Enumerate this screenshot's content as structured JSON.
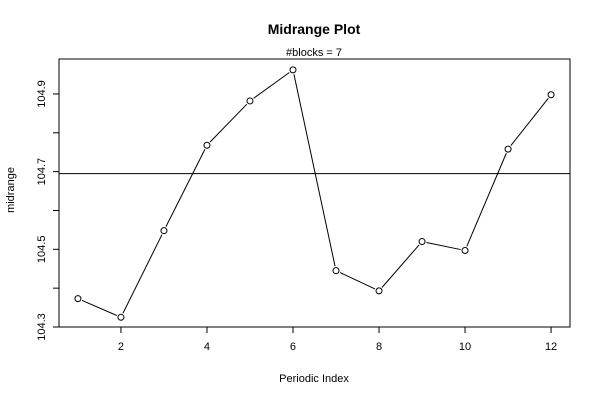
{
  "chart_data": {
    "type": "line",
    "title": "Midrange Plot",
    "subtitle": "#blocks =  7",
    "xlabel": "Periodic Index",
    "ylabel": "midrange",
    "x": [
      1,
      2,
      3,
      4,
      5,
      6,
      7,
      8,
      9,
      10,
      11,
      12
    ],
    "values": [
      104.373,
      104.325,
      104.548,
      104.768,
      104.882,
      104.962,
      104.445,
      104.393,
      104.52,
      104.497,
      104.758,
      104.898
    ],
    "mean_line": 104.695,
    "xlim": [
      0.56,
      12.44
    ],
    "ylim": [
      104.3,
      104.99
    ],
    "xticks": [
      2,
      4,
      6,
      8,
      10,
      12
    ],
    "yticks": [
      104.3,
      104.5,
      104.7,
      104.9
    ],
    "ytick_labels": [
      "104.3",
      "104.5",
      "104.7",
      "104.9"
    ],
    "xtick_labels": [
      "2",
      "4",
      "6",
      "8",
      "10",
      "12"
    ],
    "y_minor_ticks": [
      104.4,
      104.6,
      104.8
    ],
    "grid": false,
    "marker": "open-circle",
    "line_color": "#000000"
  }
}
